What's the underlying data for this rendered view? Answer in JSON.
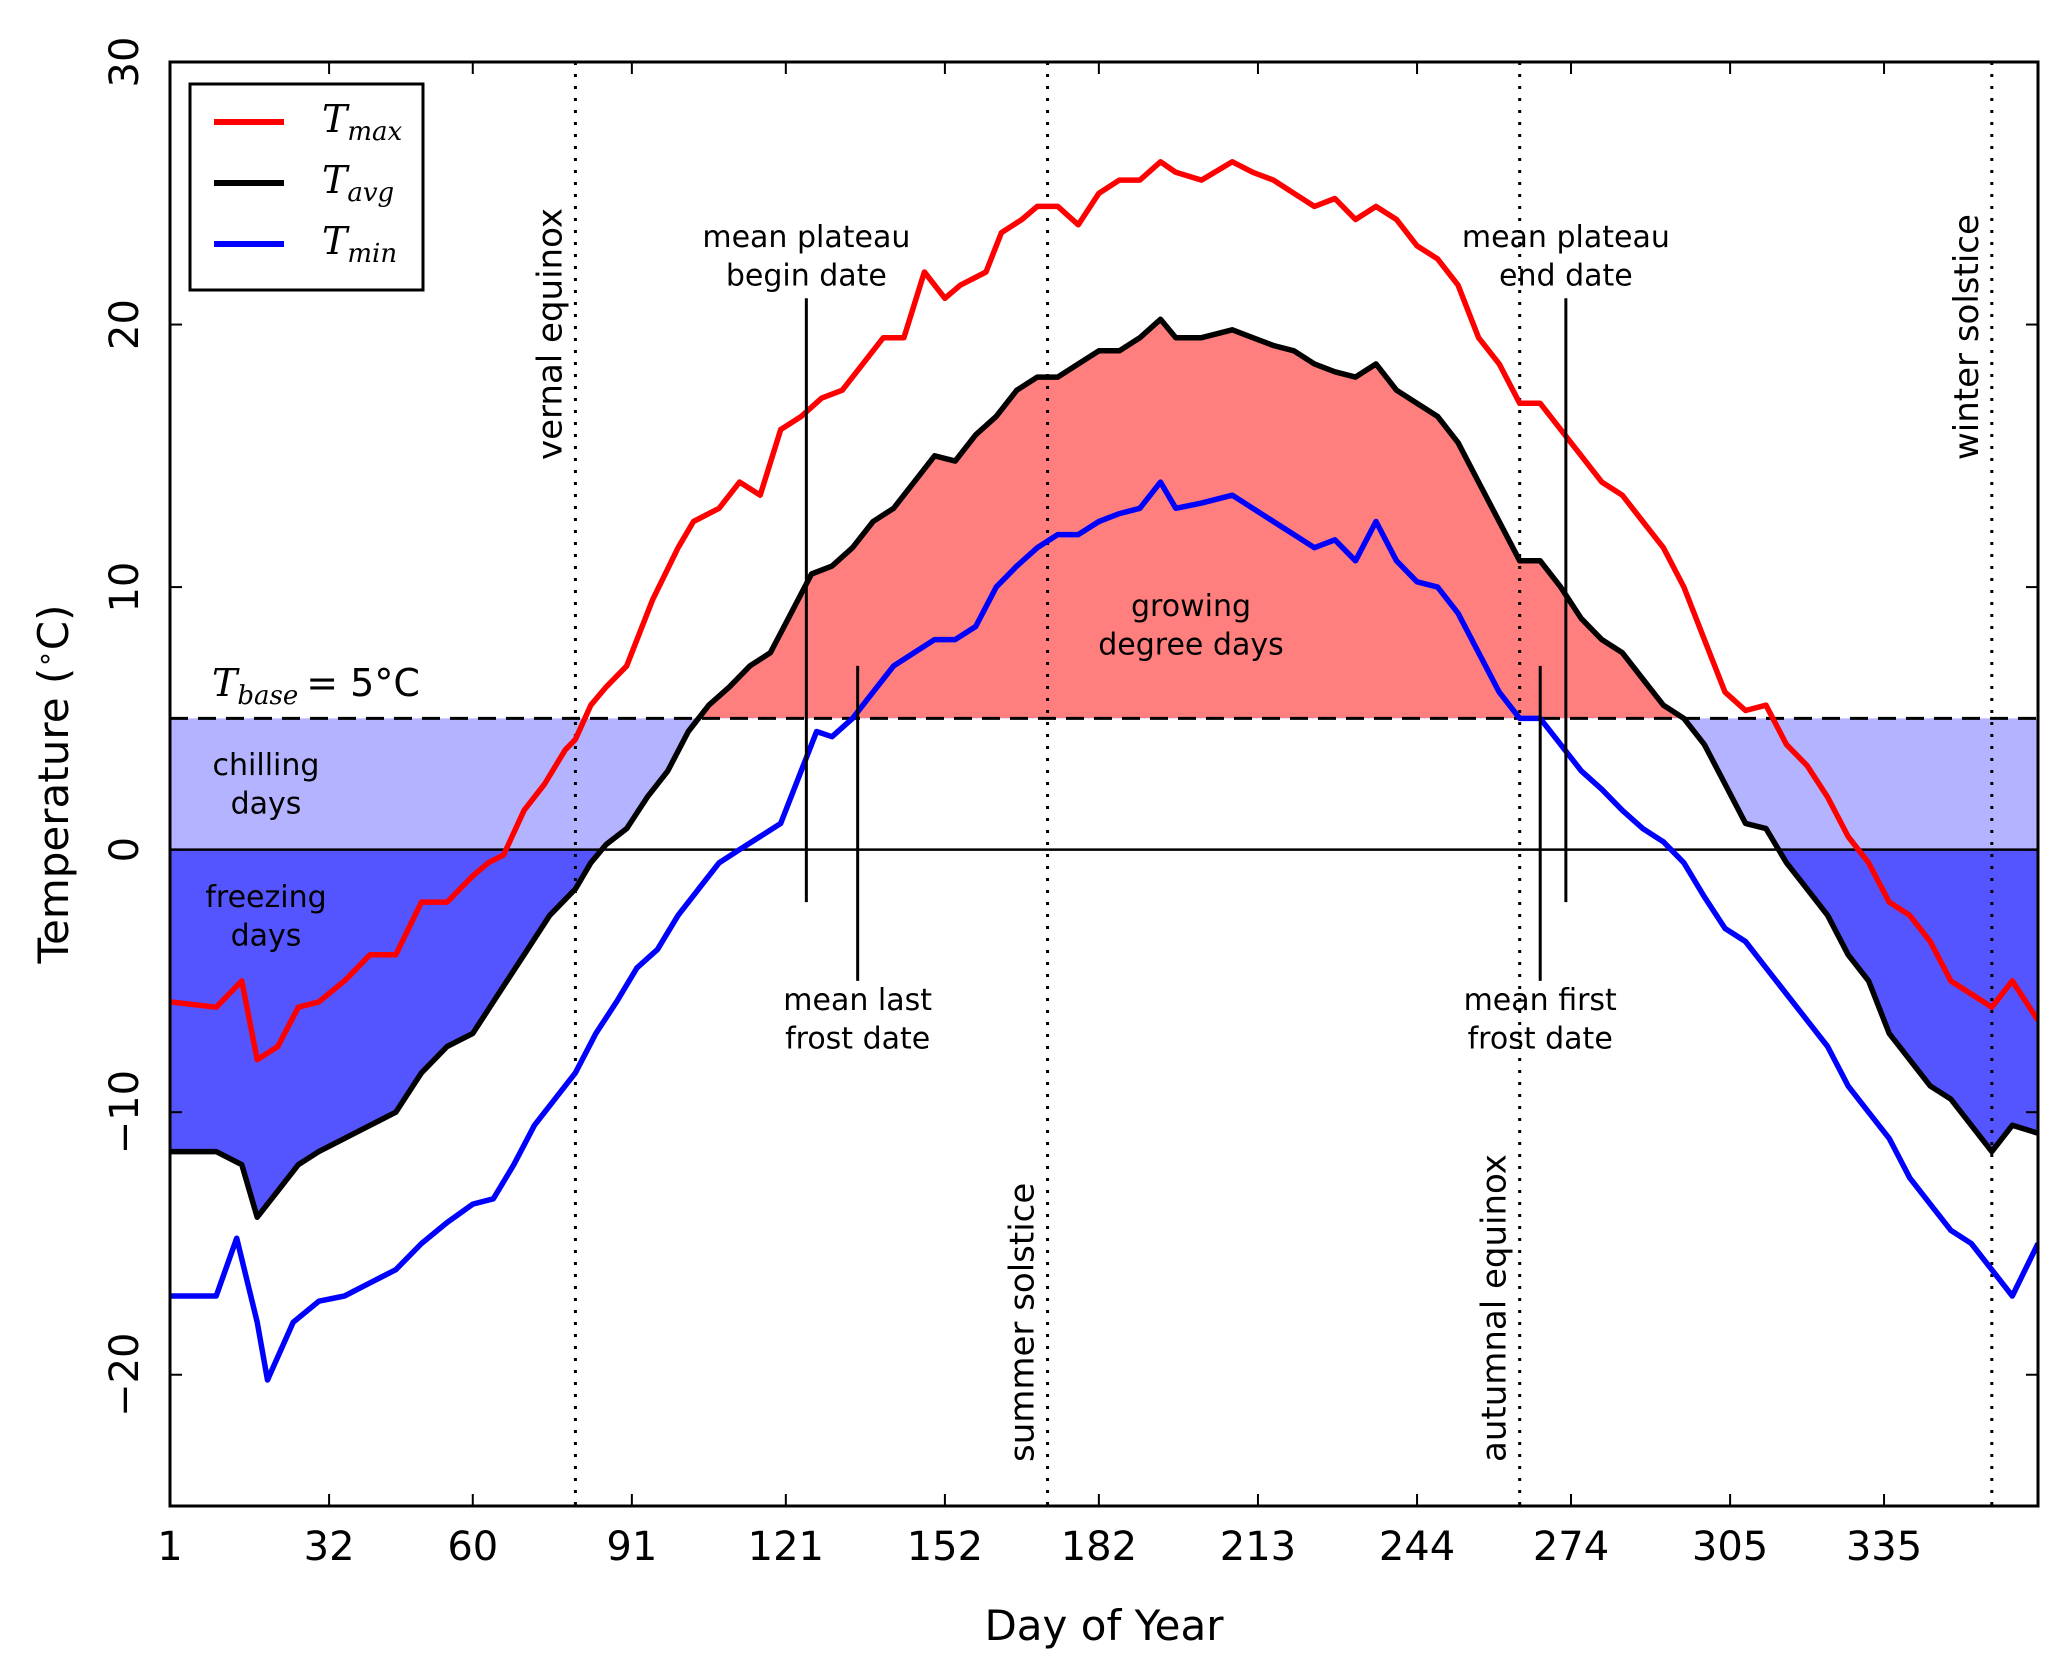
{
  "chart_data": {
    "type": "line",
    "xlabel": "Day of Year",
    "ylabel": "Temperature ($^\\circ$C)",
    "xlim": [
      1,
      365
    ],
    "ylim": [
      -25,
      30
    ],
    "xticks": [
      1,
      32,
      60,
      91,
      121,
      152,
      182,
      213,
      244,
      274,
      305,
      335
    ],
    "yticks": [
      -20,
      -10,
      0,
      10,
      20,
      30
    ],
    "ytick_labels": [
      "−20",
      "−10",
      "0",
      "10",
      "20",
      "30"
    ],
    "grid": false,
    "legend_position": "top-left",
    "base_label": {
      "main": "T",
      "sub": "base",
      "suffix": "= 5°C"
    },
    "base_value": 5,
    "series": [
      {
        "name": "T",
        "sub": "max",
        "color": "#ff0000",
        "points": [
          [
            1,
            -5.8
          ],
          [
            10,
            -6
          ],
          [
            15,
            -5
          ],
          [
            18,
            -8
          ],
          [
            22,
            -7.5
          ],
          [
            26,
            -6
          ],
          [
            30,
            -5.8
          ],
          [
            35,
            -5
          ],
          [
            40,
            -4
          ],
          [
            45,
            -4
          ],
          [
            50,
            -2
          ],
          [
            55,
            -2
          ],
          [
            60,
            -1
          ],
          [
            63,
            -0.5
          ],
          [
            66,
            -0.2
          ],
          [
            70,
            1.5
          ],
          [
            74,
            2.5
          ],
          [
            78,
            3.8
          ],
          [
            80,
            4.2
          ],
          [
            83,
            5.5
          ],
          [
            86,
            6.2
          ],
          [
            90,
            7
          ],
          [
            95,
            9.5
          ],
          [
            100,
            11.5
          ],
          [
            103,
            12.5
          ],
          [
            108,
            13
          ],
          [
            112,
            14
          ],
          [
            116,
            13.5
          ],
          [
            120,
            16
          ],
          [
            124,
            16.5
          ],
          [
            128,
            17.2
          ],
          [
            132,
            17.5
          ],
          [
            136,
            18.5
          ],
          [
            140,
            19.5
          ],
          [
            144,
            19.5
          ],
          [
            148,
            22
          ],
          [
            152,
            21
          ],
          [
            155,
            21.5
          ],
          [
            160,
            22
          ],
          [
            163,
            23.5
          ],
          [
            167,
            24
          ],
          [
            170,
            24.5
          ],
          [
            174,
            24.5
          ],
          [
            178,
            23.8
          ],
          [
            182,
            25
          ],
          [
            186,
            25.5
          ],
          [
            190,
            25.5
          ],
          [
            194,
            26.2
          ],
          [
            197,
            25.8
          ],
          [
            202,
            25.5
          ],
          [
            208,
            26.2
          ],
          [
            212,
            25.8
          ],
          [
            216,
            25.5
          ],
          [
            220,
            25
          ],
          [
            224,
            24.5
          ],
          [
            228,
            24.8
          ],
          [
            232,
            24
          ],
          [
            236,
            24.5
          ],
          [
            240,
            24
          ],
          [
            244,
            23
          ],
          [
            248,
            22.5
          ],
          [
            252,
            21.5
          ],
          [
            256,
            19.5
          ],
          [
            260,
            18.5
          ],
          [
            264,
            17
          ],
          [
            268,
            17
          ],
          [
            272,
            16
          ],
          [
            276,
            15
          ],
          [
            280,
            14
          ],
          [
            284,
            13.5
          ],
          [
            288,
            12.5
          ],
          [
            292,
            11.5
          ],
          [
            296,
            10
          ],
          [
            300,
            8
          ],
          [
            304,
            6
          ],
          [
            308,
            5.3
          ],
          [
            312,
            5.5
          ],
          [
            316,
            4
          ],
          [
            320,
            3.2
          ],
          [
            324,
            2
          ],
          [
            328,
            0.5
          ],
          [
            332,
            -0.5
          ],
          [
            336,
            -2
          ],
          [
            340,
            -2.5
          ],
          [
            344,
            -3.5
          ],
          [
            348,
            -5
          ],
          [
            352,
            -5.5
          ],
          [
            356,
            -6
          ],
          [
            360,
            -5
          ],
          [
            365,
            -6.5
          ]
        ]
      },
      {
        "name": "T",
        "sub": "avg",
        "color": "#000000",
        "points": [
          [
            1,
            -11.5
          ],
          [
            10,
            -11.5
          ],
          [
            15,
            -12
          ],
          [
            18,
            -14
          ],
          [
            22,
            -13
          ],
          [
            26,
            -12
          ],
          [
            30,
            -11.5
          ],
          [
            35,
            -11
          ],
          [
            40,
            -10.5
          ],
          [
            45,
            -10
          ],
          [
            50,
            -8.5
          ],
          [
            55,
            -7.5
          ],
          [
            60,
            -7
          ],
          [
            65,
            -5.5
          ],
          [
            70,
            -4
          ],
          [
            75,
            -2.5
          ],
          [
            80,
            -1.5
          ],
          [
            83,
            -0.5
          ],
          [
            86,
            0.2
          ],
          [
            90,
            0.8
          ],
          [
            94,
            2
          ],
          [
            98,
            3
          ],
          [
            102,
            4.5
          ],
          [
            106,
            5.5
          ],
          [
            110,
            6.2
          ],
          [
            114,
            7
          ],
          [
            118,
            7.5
          ],
          [
            122,
            9
          ],
          [
            126,
            10.5
          ],
          [
            130,
            10.8
          ],
          [
            134,
            11.5
          ],
          [
            138,
            12.5
          ],
          [
            142,
            13
          ],
          [
            146,
            14
          ],
          [
            150,
            15
          ],
          [
            154,
            14.8
          ],
          [
            158,
            15.8
          ],
          [
            162,
            16.5
          ],
          [
            166,
            17.5
          ],
          [
            170,
            18
          ],
          [
            174,
            18
          ],
          [
            178,
            18.5
          ],
          [
            182,
            19
          ],
          [
            186,
            19
          ],
          [
            190,
            19.5
          ],
          [
            194,
            20.2
          ],
          [
            197,
            19.5
          ],
          [
            202,
            19.5
          ],
          [
            208,
            19.8
          ],
          [
            212,
            19.5
          ],
          [
            216,
            19.2
          ],
          [
            220,
            19
          ],
          [
            224,
            18.5
          ],
          [
            228,
            18.2
          ],
          [
            232,
            18
          ],
          [
            236,
            18.5
          ],
          [
            240,
            17.5
          ],
          [
            244,
            17
          ],
          [
            248,
            16.5
          ],
          [
            252,
            15.5
          ],
          [
            256,
            14
          ],
          [
            260,
            12.5
          ],
          [
            264,
            11
          ],
          [
            268,
            11
          ],
          [
            272,
            10
          ],
          [
            276,
            8.8
          ],
          [
            280,
            8
          ],
          [
            284,
            7.5
          ],
          [
            288,
            6.5
          ],
          [
            292,
            5.5
          ],
          [
            296,
            5
          ],
          [
            300,
            4
          ],
          [
            304,
            2.5
          ],
          [
            308,
            1
          ],
          [
            312,
            0.8
          ],
          [
            316,
            -0.5
          ],
          [
            320,
            -1.5
          ],
          [
            324,
            -2.5
          ],
          [
            328,
            -4
          ],
          [
            332,
            -5
          ],
          [
            336,
            -7
          ],
          [
            340,
            -8
          ],
          [
            344,
            -9
          ],
          [
            348,
            -9.5
          ],
          [
            352,
            -10.5
          ],
          [
            356,
            -11.5
          ],
          [
            360,
            -10.5
          ],
          [
            365,
            -10.8
          ]
        ]
      },
      {
        "name": "T",
        "sub": "min",
        "color": "#0000ff",
        "points": [
          [
            1,
            -17
          ],
          [
            10,
            -17
          ],
          [
            14,
            -14.8
          ],
          [
            18,
            -18
          ],
          [
            20,
            -20.2
          ],
          [
            25,
            -18
          ],
          [
            30,
            -17.2
          ],
          [
            35,
            -17
          ],
          [
            40,
            -16.5
          ],
          [
            45,
            -16
          ],
          [
            50,
            -15
          ],
          [
            55,
            -14.2
          ],
          [
            60,
            -13.5
          ],
          [
            64,
            -13.3
          ],
          [
            68,
            -12
          ],
          [
            72,
            -10.5
          ],
          [
            76,
            -9.5
          ],
          [
            80,
            -8.5
          ],
          [
            84,
            -7
          ],
          [
            88,
            -5.8
          ],
          [
            92,
            -4.5
          ],
          [
            96,
            -3.8
          ],
          [
            100,
            -2.5
          ],
          [
            104,
            -1.5
          ],
          [
            108,
            -0.5
          ],
          [
            112,
            0
          ],
          [
            116,
            0.5
          ],
          [
            120,
            1
          ],
          [
            124,
            3
          ],
          [
            127,
            4.5
          ],
          [
            130,
            4.3
          ],
          [
            134,
            5
          ],
          [
            138,
            6
          ],
          [
            142,
            7
          ],
          [
            146,
            7.5
          ],
          [
            150,
            8
          ],
          [
            154,
            8
          ],
          [
            158,
            8.5
          ],
          [
            162,
            10
          ],
          [
            166,
            10.8
          ],
          [
            170,
            11.5
          ],
          [
            174,
            12
          ],
          [
            178,
            12
          ],
          [
            182,
            12.5
          ],
          [
            186,
            12.8
          ],
          [
            190,
            13
          ],
          [
            194,
            14
          ],
          [
            197,
            13
          ],
          [
            202,
            13.2
          ],
          [
            208,
            13.5
          ],
          [
            212,
            13
          ],
          [
            216,
            12.5
          ],
          [
            220,
            12
          ],
          [
            224,
            11.5
          ],
          [
            228,
            11.8
          ],
          [
            232,
            11
          ],
          [
            236,
            12.5
          ],
          [
            240,
            11
          ],
          [
            244,
            10.2
          ],
          [
            248,
            10
          ],
          [
            252,
            9
          ],
          [
            256,
            7.5
          ],
          [
            260,
            6
          ],
          [
            264,
            5
          ],
          [
            268,
            5
          ],
          [
            272,
            4
          ],
          [
            276,
            3
          ],
          [
            280,
            2.3
          ],
          [
            284,
            1.5
          ],
          [
            288,
            0.8
          ],
          [
            292,
            0.3
          ],
          [
            296,
            -0.5
          ],
          [
            300,
            -1.8
          ],
          [
            304,
            -3
          ],
          [
            308,
            -3.5
          ],
          [
            312,
            -4.5
          ],
          [
            316,
            -5.5
          ],
          [
            320,
            -6.5
          ],
          [
            324,
            -7.5
          ],
          [
            328,
            -9
          ],
          [
            332,
            -10
          ],
          [
            336,
            -11
          ],
          [
            340,
            -12.5
          ],
          [
            344,
            -13.5
          ],
          [
            348,
            -14.5
          ],
          [
            352,
            -15
          ],
          [
            356,
            -16
          ],
          [
            360,
            -17
          ],
          [
            365,
            -15
          ]
        ]
      }
    ],
    "shaded_regions": [
      {
        "label": "growing\ndegree days",
        "color": "#ff7f7f",
        "between": [
          "avg",
          "base"
        ]
      },
      {
        "label": "chilling\ndays",
        "color": "#b3b3ff",
        "between": [
          "avg",
          "base"
        ],
        "range": [
          0,
          5
        ]
      },
      {
        "label": "freezing\ndays",
        "color": "#5555ff",
        "between": [
          "avg",
          "zero"
        ]
      }
    ],
    "vlines_dotted": [
      {
        "x": 80,
        "label": "vernal equinox"
      },
      {
        "x": 172,
        "label": "summer solstice"
      },
      {
        "x": 264,
        "label": "autumnal equinox"
      },
      {
        "x": 356,
        "label": "winter solstice"
      }
    ],
    "vlines_solid": [
      {
        "x": 125,
        "label": "mean plateau\nbegin date"
      },
      {
        "x": 135,
        "label": "mean last\nfrost date"
      },
      {
        "x": 268,
        "label": "mean first\nfrost date"
      },
      {
        "x": 273,
        "label": "mean plateau\nend date"
      }
    ],
    "region_texts": {
      "growing": [
        "growing",
        "degree days"
      ],
      "chilling": [
        "chilling",
        "days"
      ],
      "freezing": [
        "freezing",
        "days"
      ]
    }
  }
}
